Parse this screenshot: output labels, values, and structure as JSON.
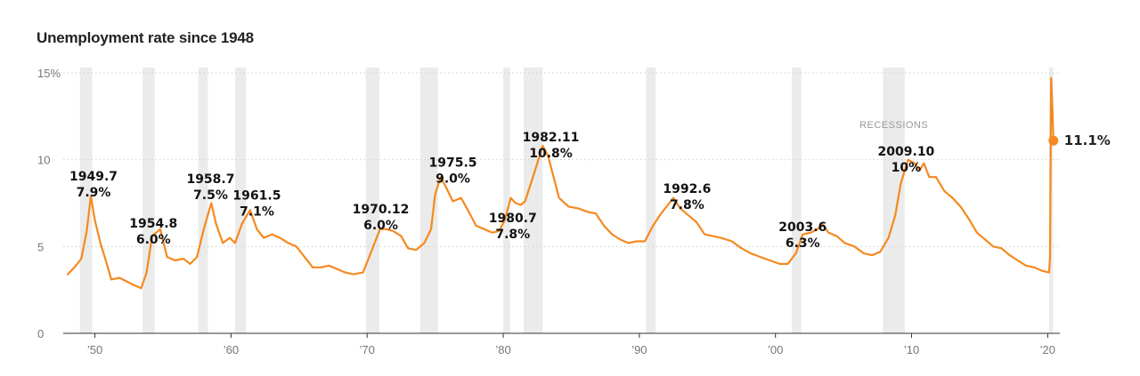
{
  "chart_data": {
    "type": "line",
    "title": "Unemployment rate since 1948",
    "ylim": [
      0,
      15
    ],
    "xlim": [
      1948,
      2020.5
    ],
    "y_ticks": [
      {
        "value": 0,
        "label": "0"
      },
      {
        "value": 5,
        "label": "5"
      },
      {
        "value": 10,
        "label": "10"
      },
      {
        "value": 15,
        "label": "15%"
      }
    ],
    "x_ticks": [
      {
        "value": 1950,
        "label": "’50"
      },
      {
        "value": 1960,
        "label": "’60"
      },
      {
        "value": 1970,
        "label": "’70"
      },
      {
        "value": 1980,
        "label": "’80"
      },
      {
        "value": 1990,
        "label": "’90"
      },
      {
        "value": 2000,
        "label": "’00"
      },
      {
        "value": 2010,
        "label": "’10"
      },
      {
        "value": 2020,
        "label": "’20"
      }
    ],
    "grid": true,
    "line_color": "#f5891f",
    "recession_color": "#ebebeb",
    "recession_label": "RECESSIONS",
    "recessions": [
      [
        1948.9,
        1949.8
      ],
      [
        1953.5,
        1954.4
      ],
      [
        1957.6,
        1958.3
      ],
      [
        1960.3,
        1961.1
      ],
      [
        1969.9,
        1970.9
      ],
      [
        1973.9,
        1975.2
      ],
      [
        1980.0,
        1980.5
      ],
      [
        1981.5,
        1982.9
      ],
      [
        1990.5,
        1991.2
      ],
      [
        2001.2,
        2001.9
      ],
      [
        2007.9,
        2009.5
      ],
      [
        2020.1,
        2020.4
      ]
    ],
    "series": [
      {
        "points": [
          [
            1948.0,
            3.4
          ],
          [
            1948.5,
            3.8
          ],
          [
            1949.0,
            4.3
          ],
          [
            1949.4,
            5.9
          ],
          [
            1949.7,
            7.9
          ],
          [
            1950.0,
            6.5
          ],
          [
            1950.4,
            5.2
          ],
          [
            1950.8,
            4.2
          ],
          [
            1951.2,
            3.1
          ],
          [
            1951.8,
            3.2
          ],
          [
            1952.3,
            3.0
          ],
          [
            1952.8,
            2.8
          ],
          [
            1953.4,
            2.6
          ],
          [
            1953.8,
            3.5
          ],
          [
            1954.2,
            5.6
          ],
          [
            1954.8,
            6.0
          ],
          [
            1955.3,
            4.4
          ],
          [
            1955.9,
            4.2
          ],
          [
            1956.5,
            4.3
          ],
          [
            1957.0,
            4.0
          ],
          [
            1957.5,
            4.4
          ],
          [
            1958.0,
            6.0
          ],
          [
            1958.55,
            7.5
          ],
          [
            1958.9,
            6.3
          ],
          [
            1959.4,
            5.2
          ],
          [
            1959.9,
            5.5
          ],
          [
            1960.3,
            5.2
          ],
          [
            1960.8,
            6.3
          ],
          [
            1961.4,
            7.1
          ],
          [
            1961.9,
            6.0
          ],
          [
            1962.4,
            5.5
          ],
          [
            1963.0,
            5.7
          ],
          [
            1963.6,
            5.5
          ],
          [
            1964.2,
            5.2
          ],
          [
            1964.8,
            5.0
          ],
          [
            1965.4,
            4.4
          ],
          [
            1966.0,
            3.8
          ],
          [
            1966.6,
            3.8
          ],
          [
            1967.2,
            3.9
          ],
          [
            1967.8,
            3.7
          ],
          [
            1968.4,
            3.5
          ],
          [
            1969.0,
            3.4
          ],
          [
            1969.7,
            3.5
          ],
          [
            1970.2,
            4.5
          ],
          [
            1970.95,
            6.0
          ],
          [
            1971.4,
            6.0
          ],
          [
            1971.9,
            5.9
          ],
          [
            1972.5,
            5.6
          ],
          [
            1973.0,
            4.9
          ],
          [
            1973.6,
            4.8
          ],
          [
            1974.2,
            5.2
          ],
          [
            1974.7,
            6.0
          ],
          [
            1975.0,
            8.0
          ],
          [
            1975.4,
            9.0
          ],
          [
            1975.8,
            8.4
          ],
          [
            1976.3,
            7.6
          ],
          [
            1976.9,
            7.8
          ],
          [
            1977.4,
            7.1
          ],
          [
            1978.0,
            6.2
          ],
          [
            1978.6,
            6.0
          ],
          [
            1979.2,
            5.8
          ],
          [
            1979.7,
            5.9
          ],
          [
            1980.1,
            6.5
          ],
          [
            1980.55,
            7.8
          ],
          [
            1980.9,
            7.5
          ],
          [
            1981.3,
            7.4
          ],
          [
            1981.6,
            7.6
          ],
          [
            1982.1,
            8.8
          ],
          [
            1982.5,
            9.8
          ],
          [
            1982.9,
            10.8
          ],
          [
            1983.3,
            10.2
          ],
          [
            1983.7,
            9.0
          ],
          [
            1984.1,
            7.8
          ],
          [
            1984.8,
            7.3
          ],
          [
            1985.5,
            7.2
          ],
          [
            1986.2,
            7.0
          ],
          [
            1986.8,
            6.9
          ],
          [
            1987.4,
            6.2
          ],
          [
            1988.0,
            5.7
          ],
          [
            1988.6,
            5.4
          ],
          [
            1989.2,
            5.2
          ],
          [
            1989.8,
            5.3
          ],
          [
            1990.4,
            5.3
          ],
          [
            1991.0,
            6.2
          ],
          [
            1991.6,
            6.9
          ],
          [
            1992.1,
            7.4
          ],
          [
            1992.5,
            7.8
          ],
          [
            1993.0,
            7.2
          ],
          [
            1993.6,
            6.8
          ],
          [
            1994.2,
            6.4
          ],
          [
            1994.8,
            5.7
          ],
          [
            1995.4,
            5.6
          ],
          [
            1996.0,
            5.5
          ],
          [
            1996.8,
            5.3
          ],
          [
            1997.5,
            4.9
          ],
          [
            1998.2,
            4.6
          ],
          [
            1998.9,
            4.4
          ],
          [
            1999.6,
            4.2
          ],
          [
            2000.3,
            4.0
          ],
          [
            2000.9,
            4.0
          ],
          [
            2001.5,
            4.6
          ],
          [
            2002.0,
            5.7
          ],
          [
            2002.6,
            5.8
          ],
          [
            2003.1,
            6.0
          ],
          [
            2003.45,
            6.3
          ],
          [
            2003.9,
            5.8
          ],
          [
            2004.5,
            5.6
          ],
          [
            2005.1,
            5.2
          ],
          [
            2005.8,
            5.0
          ],
          [
            2006.5,
            4.6
          ],
          [
            2007.1,
            4.5
          ],
          [
            2007.7,
            4.7
          ],
          [
            2008.3,
            5.5
          ],
          [
            2008.8,
            6.8
          ],
          [
            2009.2,
            8.6
          ],
          [
            2009.5,
            9.4
          ],
          [
            2009.75,
            10.0
          ],
          [
            2010.2,
            9.8
          ],
          [
            2010.6,
            9.4
          ],
          [
            2010.9,
            9.8
          ],
          [
            2011.3,
            9.0
          ],
          [
            2011.8,
            9.0
          ],
          [
            2012.4,
            8.2
          ],
          [
            2013.0,
            7.8
          ],
          [
            2013.6,
            7.3
          ],
          [
            2014.2,
            6.6
          ],
          [
            2014.8,
            5.8
          ],
          [
            2015.4,
            5.4
          ],
          [
            2016.0,
            5.0
          ],
          [
            2016.6,
            4.9
          ],
          [
            2017.2,
            4.5
          ],
          [
            2017.8,
            4.2
          ],
          [
            2018.4,
            3.9
          ],
          [
            2019.0,
            3.8
          ],
          [
            2019.6,
            3.6
          ],
          [
            2020.1,
            3.5
          ],
          [
            2020.17,
            4.4
          ],
          [
            2020.25,
            14.7
          ],
          [
            2020.33,
            13.3
          ],
          [
            2020.42,
            11.1
          ]
        ]
      }
    ],
    "annotations": [
      {
        "date": "1949.7",
        "value": "7.9%",
        "x": 1949.75,
        "y": 7.9,
        "tx": 1949.9,
        "ty": 8.8
      },
      {
        "date": "1954.8",
        "value": "6.0%",
        "x": 1954.8,
        "y": 6.0,
        "tx": 1954.3,
        "ty": 6.1
      },
      {
        "date": "1958.7",
        "value": "7.5%",
        "x": 1958.55,
        "y": 7.5,
        "tx": 1958.5,
        "ty": 8.65
      },
      {
        "date": "1961.5",
        "value": "7.1%",
        "x": 1961.4,
        "y": 7.1,
        "tx": 1961.9,
        "ty": 7.7
      },
      {
        "date": "1970.12",
        "value": "6.0%",
        "x": 1970.95,
        "y": 6.0,
        "tx": 1971.0,
        "ty": 6.9
      },
      {
        "date": "1975.5",
        "value": "9.0%",
        "x": 1975.4,
        "y": 9.0,
        "tx": 1976.3,
        "ty": 9.6
      },
      {
        "date": "1980.7",
        "value": "7.8%",
        "x": 1980.55,
        "y": 7.8,
        "tx": 1980.7,
        "ty": 6.4
      },
      {
        "date": "1982.11",
        "value": "10.8%",
        "x": 1982.9,
        "y": 10.8,
        "tx": 1983.5,
        "ty": 11.05
      },
      {
        "date": "1992.6",
        "value": "7.8%",
        "x": 1992.5,
        "y": 7.8,
        "tx": 1993.5,
        "ty": 8.1
      },
      {
        "date": "2003.6",
        "value": "6.3%",
        "x": 2003.45,
        "y": 6.3,
        "tx": 2002.0,
        "ty": 5.9
      },
      {
        "date": "2009.10",
        "value": "10%",
        "x": 2009.75,
        "y": 10.0,
        "tx": 2009.6,
        "ty": 10.25
      }
    ],
    "last_value": {
      "label": "11.1%",
      "x": 2020.42,
      "y": 11.1
    }
  }
}
